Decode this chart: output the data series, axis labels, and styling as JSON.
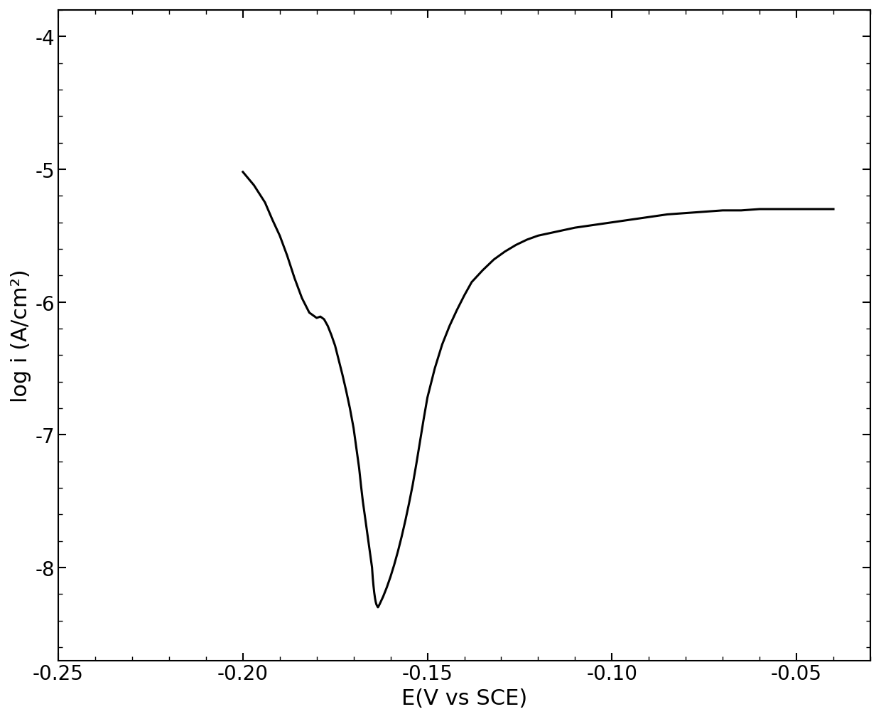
{
  "xlabel": "E(V vs SCE)",
  "ylabel": "log i (A/cm²)",
  "xlim": [
    -0.25,
    -0.03
  ],
  "ylim": [
    -8.7,
    -3.8
  ],
  "xticks": [
    -0.25,
    -0.2,
    -0.15,
    -0.1,
    -0.05
  ],
  "yticks": [
    -8,
    -7,
    -6,
    -5,
    -4
  ],
  "line_color": "#000000",
  "line_width": 2.2,
  "background_color": "#ffffff",
  "curve_x": [
    -0.2,
    -0.197,
    -0.194,
    -0.192,
    -0.19,
    -0.188,
    -0.186,
    -0.184,
    -0.182,
    -0.18,
    -0.179,
    -0.178,
    -0.177,
    -0.176,
    -0.175,
    -0.174,
    -0.173,
    -0.172,
    -0.171,
    -0.17,
    -0.1695,
    -0.169,
    -0.1685,
    -0.168,
    -0.1675,
    -0.167,
    -0.1665,
    -0.166,
    -0.1655,
    -0.165,
    -0.1648,
    -0.1646,
    -0.1644,
    -0.1642,
    -0.164,
    -0.1638,
    -0.1636,
    -0.1634,
    -0.163,
    -0.162,
    -0.161,
    -0.16,
    -0.159,
    -0.158,
    -0.157,
    -0.156,
    -0.155,
    -0.154,
    -0.153,
    -0.152,
    -0.151,
    -0.15,
    -0.148,
    -0.146,
    -0.144,
    -0.142,
    -0.14,
    -0.138,
    -0.135,
    -0.132,
    -0.129,
    -0.126,
    -0.123,
    -0.12,
    -0.115,
    -0.11,
    -0.105,
    -0.1,
    -0.095,
    -0.09,
    -0.085,
    -0.08,
    -0.075,
    -0.07,
    -0.065,
    -0.06,
    -0.055,
    -0.05,
    -0.045,
    -0.04
  ],
  "curve_y": [
    -5.02,
    -5.12,
    -5.25,
    -5.38,
    -5.5,
    -5.65,
    -5.82,
    -5.97,
    -6.08,
    -6.12,
    -6.11,
    -6.13,
    -6.18,
    -6.25,
    -6.33,
    -6.44,
    -6.55,
    -6.67,
    -6.8,
    -6.95,
    -7.05,
    -7.15,
    -7.25,
    -7.38,
    -7.5,
    -7.6,
    -7.7,
    -7.8,
    -7.9,
    -8.0,
    -8.08,
    -8.14,
    -8.19,
    -8.23,
    -8.26,
    -8.28,
    -8.29,
    -8.3,
    -8.28,
    -8.22,
    -8.15,
    -8.07,
    -7.98,
    -7.88,
    -7.77,
    -7.65,
    -7.52,
    -7.38,
    -7.22,
    -7.05,
    -6.88,
    -6.72,
    -6.5,
    -6.32,
    -6.18,
    -6.06,
    -5.95,
    -5.85,
    -5.76,
    -5.68,
    -5.62,
    -5.57,
    -5.53,
    -5.5,
    -5.47,
    -5.44,
    -5.42,
    -5.4,
    -5.38,
    -5.36,
    -5.34,
    -5.33,
    -5.32,
    -5.31,
    -5.31,
    -5.3,
    -5.3,
    -5.3,
    -5.3,
    -5.3
  ],
  "xlabel_fontsize": 22,
  "ylabel_fontsize": 22,
  "tick_fontsize": 20,
  "figsize": [
    12.4,
    10.12
  ],
  "dpi": 100
}
